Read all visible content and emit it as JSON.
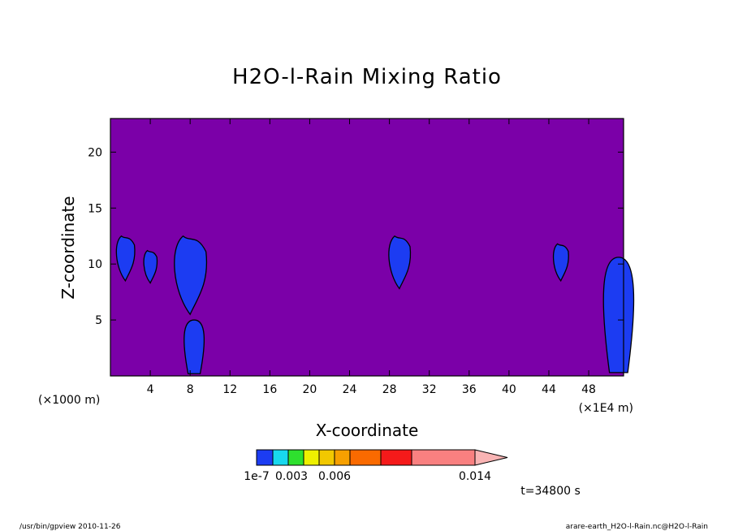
{
  "chart_data": {
    "type": "heatmap",
    "title": "H2O-l-Rain Mixing Ratio",
    "xlabel": "X-coordinate",
    "ylabel": "Z-coordinate",
    "x_unit": "(×1000 m)",
    "x_unit_right": "(×1E4 m)",
    "xlim": [
      0,
      51.5
    ],
    "ylim": [
      0,
      23
    ],
    "x_ticks": [
      4,
      8,
      12,
      16,
      20,
      24,
      28,
      32,
      36,
      40,
      44,
      48
    ],
    "y_ticks": [
      5,
      10,
      15,
      20
    ],
    "background_color": "#7b00a8",
    "colorbar": {
      "colors": [
        "#1c3cf2",
        "#18d8ee",
        "#2ee02e",
        "#eef000",
        "#f2c800",
        "#f7a000",
        "#fa6a00",
        "#f51a1a",
        "#f98080",
        "#f9b4b4"
      ],
      "tick_labels": [
        "1e-7",
        "0.003",
        "0.006",
        "0.014"
      ],
      "extend": "max"
    },
    "time_label": "t=34800 s",
    "features": [
      {
        "level": "1e-7",
        "x_center": 1.5,
        "z_range": [
          8.5,
          12.5
        ]
      },
      {
        "level": "1e-7",
        "x_center": 4.0,
        "z_range": [
          8.3,
          11.2
        ]
      },
      {
        "level": "1e-7",
        "x_center": 8.0,
        "z_range": [
          5.5,
          12.5
        ]
      },
      {
        "level": "1e-7",
        "x_center": 8.4,
        "z_range": [
          0.2,
          5.0
        ]
      },
      {
        "level": "1e-7",
        "x_center": 29.0,
        "z_range": [
          7.8,
          12.5
        ]
      },
      {
        "level": "1e-7",
        "x_center": 45.2,
        "z_range": [
          8.5,
          11.8
        ]
      },
      {
        "level": "1e-7",
        "x_center": 51.0,
        "z_range": [
          0.3,
          10.6
        ]
      }
    ]
  },
  "footer": {
    "left": "/usr/bin/gpview  2010-11-26",
    "right": "arare-earth_H2O-l-Rain.nc@H2O-l-Rain"
  }
}
